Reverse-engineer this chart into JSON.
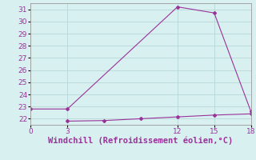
{
  "line1_x": [
    0,
    3,
    12,
    15,
    18
  ],
  "line1_y": [
    22.8,
    22.8,
    31.2,
    30.7,
    22.6
  ],
  "line2_x": [
    3,
    6,
    9,
    12,
    15,
    18
  ],
  "line2_y": [
    21.8,
    21.85,
    22.0,
    22.15,
    22.3,
    22.4
  ],
  "xlabel": "Windchill (Refroidissement éolien,°C)",
  "xlim": [
    0,
    18
  ],
  "ylim": [
    21.5,
    31.5
  ],
  "xticks": [
    0,
    3,
    12,
    15,
    18
  ],
  "yticks": [
    22,
    23,
    24,
    25,
    26,
    27,
    28,
    29,
    30,
    31
  ],
  "line_color": "#993399",
  "marker_color": "#993399",
  "bg_color": "#d8f0f0",
  "grid_color": "#b8d8d8",
  "tick_label_color": "#993399",
  "xlabel_color": "#993399",
  "xlabel_fontsize": 7.5,
  "tick_fontsize": 6.5
}
